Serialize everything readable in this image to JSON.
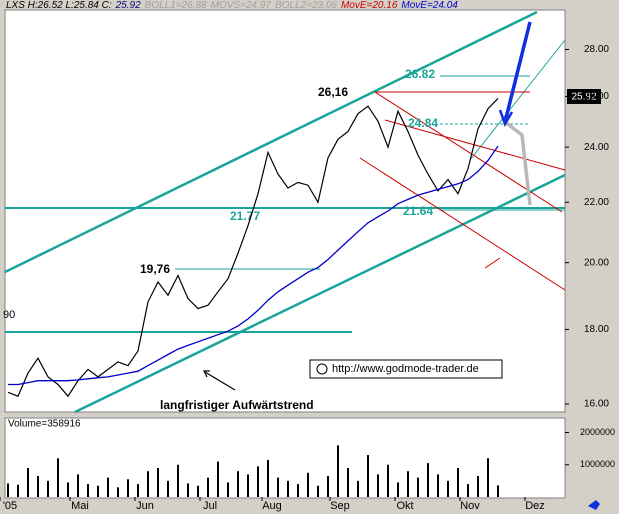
{
  "chart_data": {
    "type": "line",
    "header": [
      {
        "text": "LXS H:26.52 L:25.84 C:",
        "color": "#000000"
      },
      {
        "text": "25.92",
        "color": "#000080"
      },
      {
        "text": "BOLL1=26.88",
        "color": "#a0a0a0"
      },
      {
        "text": "MOVS=24.97",
        "color": "#a0a0a0"
      },
      {
        "text": "BOLL2=23.06",
        "color": "#a0a0a0"
      },
      {
        "text": "MovE=20.16",
        "color": "#cc0000"
      },
      {
        "text": "MovE=24.04",
        "color": "#0000cc"
      }
    ],
    "xlim": [
      -0.3,
      55.7
    ],
    "xticks": [
      {
        "value": 0.2,
        "label": "'05"
      },
      {
        "value": 7.2,
        "label": "Mai"
      },
      {
        "value": 13.7,
        "label": "Jun"
      },
      {
        "value": 20.2,
        "label": "Jul"
      },
      {
        "value": 26.4,
        "label": "Aug"
      },
      {
        "value": 33.2,
        "label": "Sep"
      },
      {
        "value": 39.7,
        "label": "Okt"
      },
      {
        "value": 46.2,
        "label": "Nov"
      },
      {
        "value": 52.7,
        "label": "Dez"
      }
    ],
    "ylim": [
      15.8,
      29.8
    ],
    "log_scale": true,
    "yticks": [
      {
        "value": 16,
        "label": "16.00"
      },
      {
        "value": 18,
        "label": "18.00"
      },
      {
        "value": 20,
        "label": "20.00"
      },
      {
        "value": 22,
        "label": "22.00"
      },
      {
        "value": 24,
        "label": "24.00"
      },
      {
        "value": 26,
        "label": "26.00"
      },
      {
        "value": 28,
        "label": "28.00"
      }
    ],
    "last_price_label": "25.92",
    "series": [
      {
        "name": "LXS",
        "color": "#000000",
        "values": [
          16.3,
          16.2,
          16.8,
          17.2,
          16.7,
          16.5,
          16.2,
          16.6,
          16.9,
          16.7,
          16.9,
          17.1,
          17.0,
          17.4,
          18.8,
          19.4,
          19.0,
          19.6,
          18.9,
          18.6,
          18.7,
          19.1,
          19.5,
          20.3,
          21.2,
          22.3,
          23.8,
          23.0,
          22.5,
          22.7,
          22.6,
          22.0,
          23.6,
          24.3,
          24.6,
          25.3,
          25.6,
          25.0,
          24.0,
          25.4,
          24.6,
          23.7,
          23.0,
          22.4,
          22.8,
          22.3,
          23.2,
          24.7,
          25.5,
          25.92
        ]
      },
      {
        "name": "MovE",
        "color": "#0000cc",
        "values": [
          16.5,
          16.5,
          16.55,
          16.6,
          16.6,
          16.6,
          16.6,
          16.62,
          16.65,
          16.68,
          16.7,
          16.75,
          16.8,
          16.85,
          17.0,
          17.15,
          17.3,
          17.45,
          17.55,
          17.65,
          17.75,
          17.85,
          17.95,
          18.1,
          18.3,
          18.55,
          18.85,
          19.1,
          19.3,
          19.5,
          19.7,
          19.85,
          20.1,
          20.4,
          20.7,
          21.0,
          21.3,
          21.5,
          21.7,
          21.95,
          22.1,
          22.25,
          22.35,
          22.45,
          22.55,
          22.65,
          22.8,
          23.1,
          23.5,
          24.04
        ]
      }
    ],
    "annotations": [
      "26,16",
      "26.82",
      "24.84",
      "21.77",
      "21.64",
      "19,76",
      "90",
      "langfristiger Aufwärtstrend",
      "http://www.godmode-trader.de"
    ],
    "volume": {
      "label": "Volume=358916",
      "color": "#000000",
      "ylim": [
        0,
        2450000
      ],
      "yticks": [
        1000000,
        2000000
      ],
      "values": [
        420000,
        380000,
        900000,
        650000,
        500000,
        1200000,
        450000,
        700000,
        400000,
        350000,
        600000,
        300000,
        550000,
        400000,
        800000,
        900000,
        500000,
        1000000,
        420000,
        350000,
        600000,
        1100000,
        450000,
        800000,
        700000,
        950000,
        1150000,
        600000,
        500000,
        400000,
        750000,
        350000,
        650000,
        1600000,
        900000,
        500000,
        1300000,
        700000,
        1000000,
        450000,
        800000,
        600000,
        1050000,
        700000,
        500000,
        900000,
        400000,
        650000,
        1200000,
        358916
      ]
    }
  }
}
